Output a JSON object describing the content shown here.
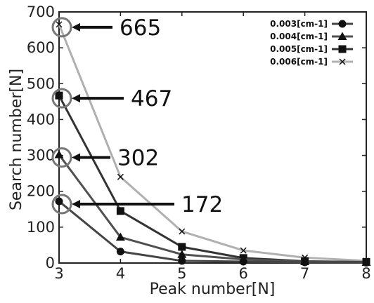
{
  "chart_data": {
    "type": "line",
    "xlabel": "Peak number[N]",
    "ylabel": "Search number[N]",
    "xlim": [
      3,
      8
    ],
    "ylim": [
      0,
      700
    ],
    "x_ticks": [
      "3",
      "4",
      "5",
      "6",
      "7",
      "8"
    ],
    "y_ticks": [
      "0",
      "100",
      "200",
      "300",
      "400",
      "500",
      "600",
      "700"
    ],
    "x": [
      3,
      4,
      5,
      6,
      7,
      8
    ],
    "series": [
      {
        "name": "0.003[cm-1]",
        "marker": "circle",
        "color": "#444444",
        "values": [
          172,
          32,
          6,
          4,
          2,
          1
        ]
      },
      {
        "name": "0.004[cm-1]",
        "marker": "triangle",
        "color": "#505050",
        "values": [
          302,
          72,
          24,
          10,
          4,
          2
        ]
      },
      {
        "name": "0.005[cm-1]",
        "marker": "square",
        "color": "#333333",
        "values": [
          467,
          145,
          45,
          14,
          5,
          3
        ]
      },
      {
        "name": "0.006[cm-1]",
        "marker": "x",
        "color": "#b0b0b0",
        "values": [
          665,
          240,
          88,
          35,
          15,
          6
        ]
      }
    ],
    "legend_position": "top-right",
    "grid": false,
    "annotations": [
      {
        "label": "665",
        "series_index": 3,
        "x": 3,
        "y": 665
      },
      {
        "label": "467",
        "series_index": 2,
        "x": 3,
        "y": 467
      },
      {
        "label": "302",
        "series_index": 1,
        "x": 3,
        "y": 302
      },
      {
        "label": "172",
        "series_index": 0,
        "x": 3,
        "y": 172
      }
    ]
  }
}
